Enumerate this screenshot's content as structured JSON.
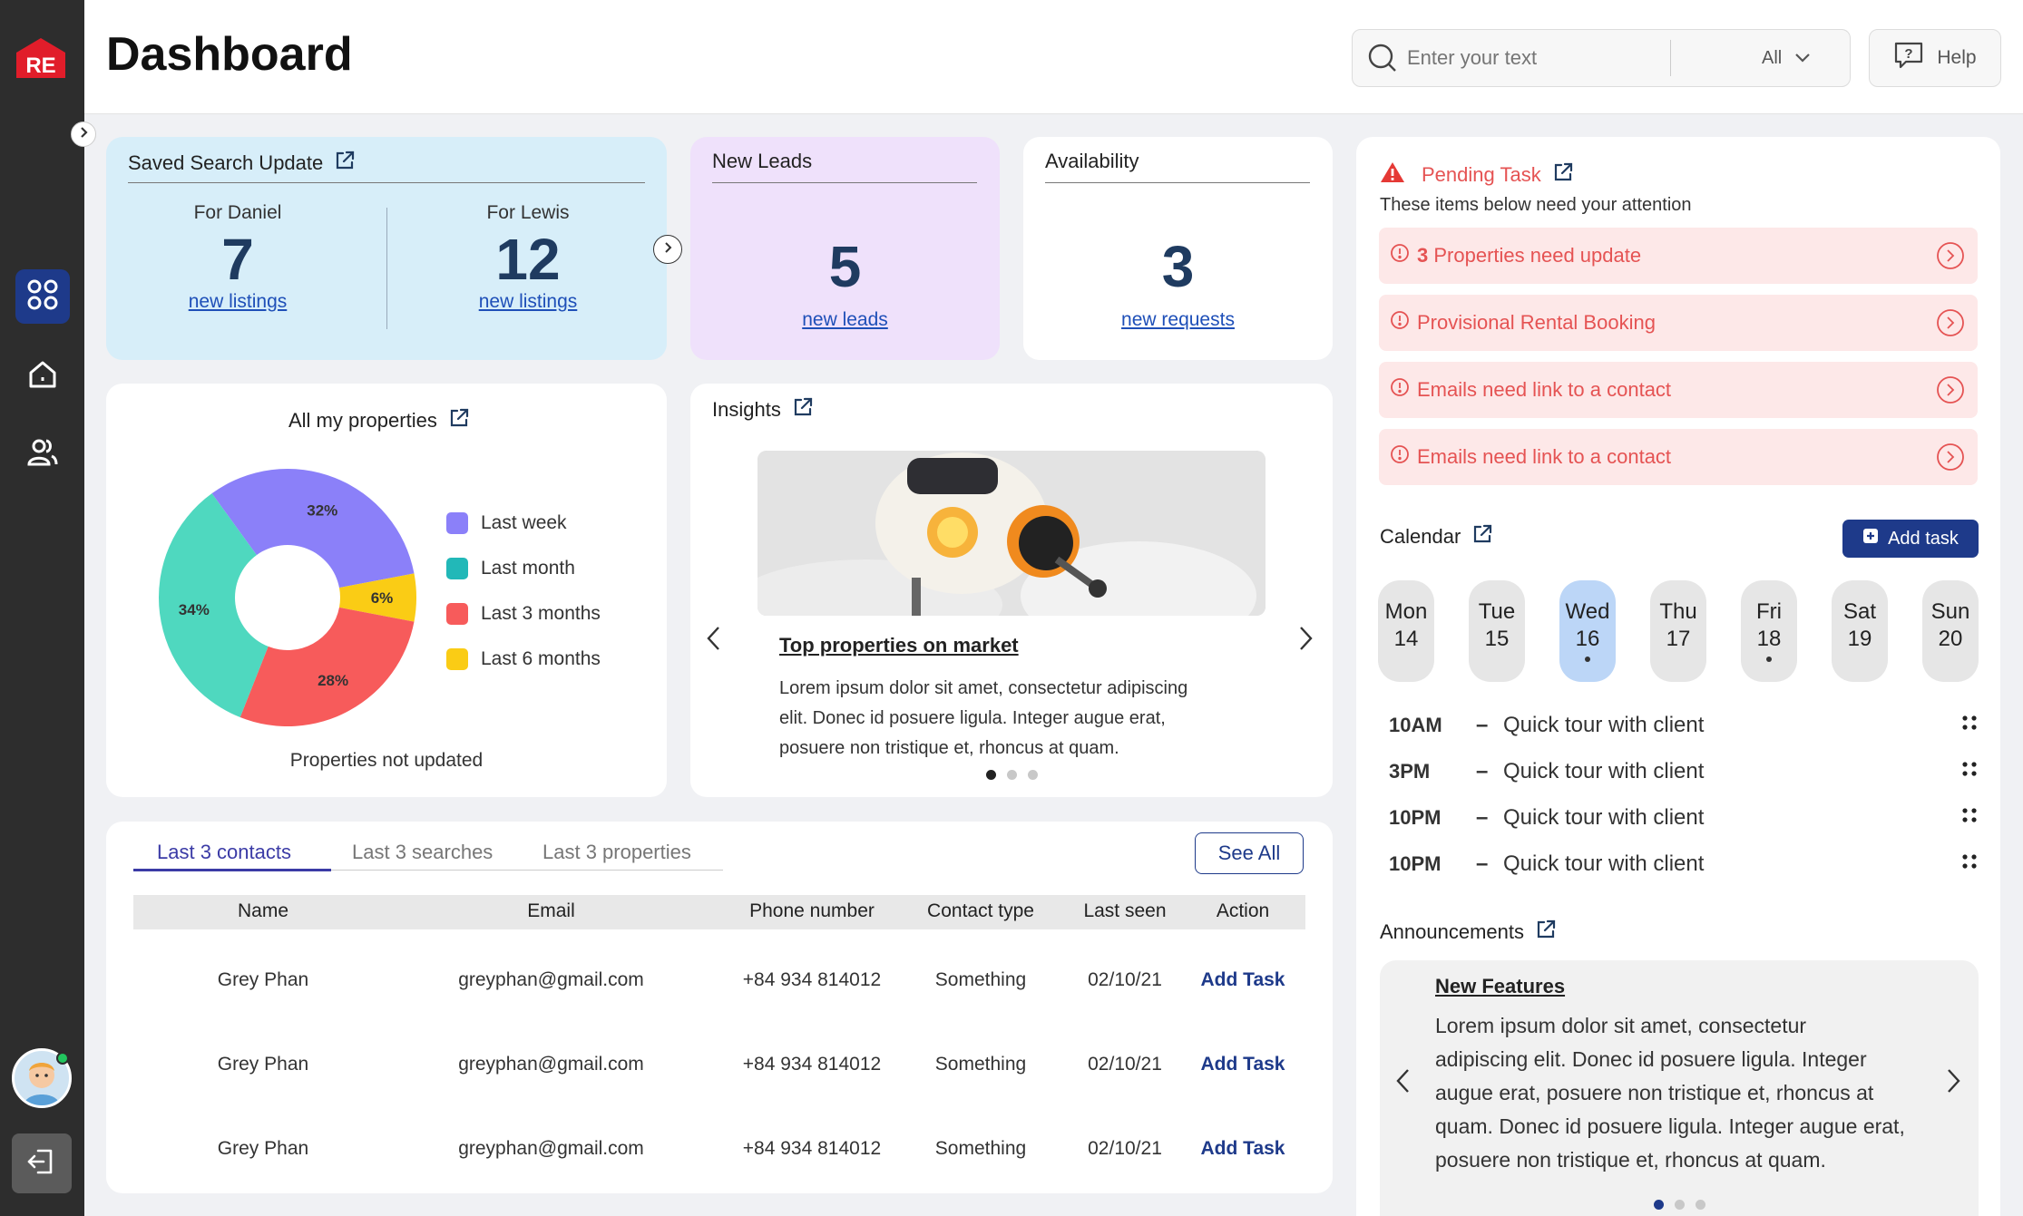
{
  "header": {
    "title": "Dashboard",
    "search_placeholder": "Enter your text",
    "filter_value": "All",
    "help_label": "Help"
  },
  "saved_search": {
    "title": "Saved Search Update",
    "left": {
      "label": "For Daniel",
      "count": "7",
      "link": "new listings"
    },
    "right": {
      "label": "For Lewis",
      "count": "12",
      "link": "new listings"
    }
  },
  "new_leads": {
    "title": "New Leads",
    "count": "5",
    "link": "new leads"
  },
  "availability": {
    "title": "Availability",
    "count": "3",
    "link": "new requests"
  },
  "properties": {
    "title": "All my properties",
    "caption": "Properties not updated",
    "slices": [
      {
        "label": "32%",
        "value": 32,
        "color": "#8b80f9"
      },
      {
        "label": "6%",
        "value": 6,
        "color": "#facc15"
      },
      {
        "label": "28%",
        "value": 28,
        "color": "#f75b5b"
      },
      {
        "label": "34%",
        "value": 34,
        "color": "#4fd8bf"
      }
    ],
    "legend": [
      {
        "label": "Last week",
        "color": "#8b80f9"
      },
      {
        "label": "Last month",
        "color": "#22b8b8"
      },
      {
        "label": "Last 3 months",
        "color": "#f75b5b"
      },
      {
        "label": "Last 6 months",
        "color": "#facc15"
      }
    ]
  },
  "insights": {
    "title": "Insights",
    "heading": "Top properties on market",
    "body": [
      "Lorem ipsum dolor sit amet, consectetur adipiscing",
      "elit. Donec id posuere ligula. Integer augue erat,",
      "posuere non tristique et, rhoncus at quam."
    ]
  },
  "tabs": [
    "Last 3 contacts",
    "Last 3 searches",
    "Last 3 properties"
  ],
  "see_all": "See All",
  "table": {
    "headers": [
      "Name",
      "Email",
      "Phone number",
      "Contact type",
      "Last seen",
      "Action"
    ],
    "rows": [
      [
        "Grey Phan",
        "greyphan@gmail.com",
        "+84 934 814012",
        "Something",
        "02/10/21",
        "Add Task"
      ],
      [
        "Grey Phan",
        "greyphan@gmail.com",
        "+84 934 814012",
        "Something",
        "02/10/21",
        "Add Task"
      ],
      [
        "Grey Phan",
        "greyphan@gmail.com",
        "+84 934 814012",
        "Something",
        "02/10/21",
        "Add Task"
      ]
    ]
  },
  "pending": {
    "title": "Pending Task",
    "subtitle": "These items below need your attention",
    "items": [
      {
        "count": "3",
        "text": " Properties need update"
      },
      {
        "count": "",
        "text": "Provisional Rental Booking"
      },
      {
        "count": "",
        "text": "Emails need link to a contact"
      },
      {
        "count": "",
        "text": "Emails need link to a contact"
      }
    ]
  },
  "calendar": {
    "title": "Calendar",
    "add_label": "Add task",
    "days": [
      {
        "name": "Mon",
        "num": "14"
      },
      {
        "name": "Tue",
        "num": "15"
      },
      {
        "name": "Wed",
        "num": "16"
      },
      {
        "name": "Thu",
        "num": "17"
      },
      {
        "name": "Fri",
        "num": "18"
      },
      {
        "name": "Sat",
        "num": "19"
      },
      {
        "name": "Sun",
        "num": "20"
      }
    ],
    "events": [
      {
        "time": "10AM",
        "title": "Quick tour with client"
      },
      {
        "time": "3PM",
        "title": "Quick tour with client"
      },
      {
        "time": "10PM",
        "title": "Quick tour with client"
      },
      {
        "time": "10PM",
        "title": "Quick tour with client"
      }
    ]
  },
  "announcements": {
    "title": "Announcements",
    "heading": "New Features",
    "body": [
      "Lorem ipsum dolor sit amet, consectetur",
      "adipiscing elit. Donec id posuere ligula. Integer",
      "augue erat, posuere non tristique et, rhoncus at",
      "quam. Donec id posuere ligula. Integer augue erat,",
      "posuere non tristique et, rhoncus at quam."
    ]
  }
}
